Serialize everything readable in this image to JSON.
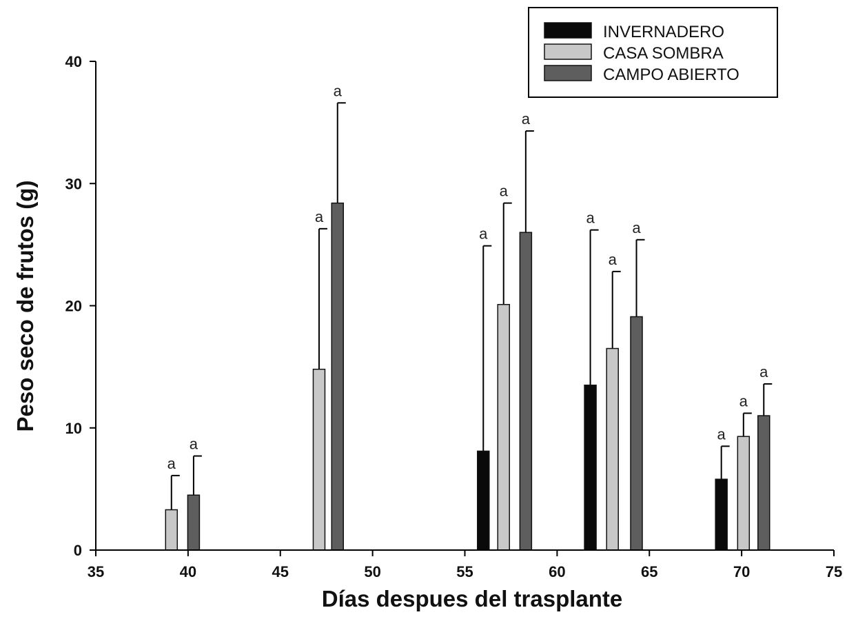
{
  "chart_data": {
    "type": "bar",
    "title": "",
    "xlabel": "Días despues del trasplante",
    "ylabel": "Peso seco de frutos (g)",
    "xlim": [
      35,
      75
    ],
    "ylim": [
      0,
      40
    ],
    "xticks": [
      "35",
      "40",
      "45",
      "50",
      "55",
      "60",
      "65",
      "70",
      "75"
    ],
    "yticks": [
      "0",
      "10",
      "20",
      "30",
      "40"
    ],
    "grid": false,
    "legend_position": "top-right",
    "groups": [
      40,
      48,
      57,
      63,
      70
    ],
    "series": [
      {
        "name": "INVERNADERO",
        "color": "#0a0a0a",
        "points": [
          {
            "x": 56,
            "y": 8.1,
            "err": 24.9,
            "label": "a"
          },
          {
            "x": 61.8,
            "y": 13.5,
            "err": 26.2,
            "label": "a"
          },
          {
            "x": 68.9,
            "y": 5.8,
            "err": 8.5,
            "label": "a"
          }
        ]
      },
      {
        "name": "CASA SOMBRA",
        "color": "#c8c8c8",
        "points": [
          {
            "x": 39.1,
            "y": 3.3,
            "err": 6.1,
            "label": "a"
          },
          {
            "x": 47.1,
            "y": 14.8,
            "err": 26.3,
            "label": "a"
          },
          {
            "x": 57.1,
            "y": 20.1,
            "err": 28.4,
            "label": "a"
          },
          {
            "x": 63,
            "y": 16.5,
            "err": 22.8,
            "label": "a"
          },
          {
            "x": 70.1,
            "y": 9.3,
            "err": 11.2,
            "label": "a"
          }
        ]
      },
      {
        "name": "CAMPO ABIERTO",
        "color": "#5e5e5e",
        "points": [
          {
            "x": 40.3,
            "y": 4.5,
            "err": 7.7,
            "label": "a"
          },
          {
            "x": 48.1,
            "y": 28.4,
            "err": 36.6,
            "label": "a"
          },
          {
            "x": 58.3,
            "y": 26,
            "err": 34.3,
            "label": "a"
          },
          {
            "x": 64.3,
            "y": 19.1,
            "err": 25.4,
            "label": "a"
          },
          {
            "x": 71.2,
            "y": 11,
            "err": 13.6,
            "label": "a"
          }
        ]
      }
    ]
  }
}
